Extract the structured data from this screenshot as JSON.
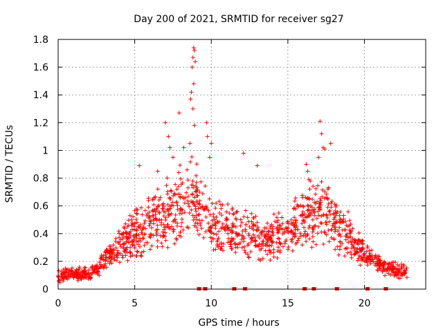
{
  "chart_data": {
    "type": "scatter",
    "title": "Day 200 of 2021, SRMTID for receiver sg27",
    "xlabel": "GPS time / hours",
    "ylabel": "SRMTID / TECUs",
    "xlim": [
      0,
      24
    ],
    "ylim": [
      0,
      1.8
    ],
    "xticks": [
      0,
      5,
      10,
      15,
      20
    ],
    "yticks": [
      0,
      0.2,
      0.4,
      0.6,
      0.8,
      1,
      1.2,
      1.4,
      1.6,
      1.8
    ],
    "xtick_labels": [
      "0",
      "5",
      "10",
      "15",
      "20"
    ],
    "ytick_labels": [
      "0",
      "0.2",
      "0.4",
      "0.6",
      "0.8",
      "1",
      "1.2",
      "1.4",
      "1.6",
      "1.8"
    ],
    "grid": true,
    "marker": "plus",
    "series": [
      {
        "name": "SRMTID",
        "color": "#ff0000",
        "envelope": [
          {
            "x": 0.0,
            "lo": 0.04,
            "hi": 0.15
          },
          {
            "x": 1.0,
            "lo": 0.05,
            "hi": 0.16
          },
          {
            "x": 2.0,
            "lo": 0.06,
            "hi": 0.17
          },
          {
            "x": 2.6,
            "lo": 0.08,
            "hi": 0.22
          },
          {
            "x": 3.0,
            "lo": 0.1,
            "hi": 0.32
          },
          {
            "x": 4.0,
            "lo": 0.15,
            "hi": 0.45
          },
          {
            "x": 5.0,
            "lo": 0.2,
            "hi": 0.6
          },
          {
            "x": 6.0,
            "lo": 0.22,
            "hi": 0.7
          },
          {
            "x": 7.0,
            "lo": 0.25,
            "hi": 0.85
          },
          {
            "x": 8.0,
            "lo": 0.25,
            "hi": 0.95
          },
          {
            "x": 8.9,
            "lo": 0.3,
            "hi": 1.0
          },
          {
            "x": 10.0,
            "lo": 0.25,
            "hi": 0.7
          },
          {
            "x": 11.0,
            "lo": 0.2,
            "hi": 0.65
          },
          {
            "x": 12.0,
            "lo": 0.2,
            "hi": 0.6
          },
          {
            "x": 13.0,
            "lo": 0.2,
            "hi": 0.55
          },
          {
            "x": 14.0,
            "lo": 0.2,
            "hi": 0.55
          },
          {
            "x": 15.0,
            "lo": 0.22,
            "hi": 0.6
          },
          {
            "x": 16.0,
            "lo": 0.25,
            "hi": 0.75
          },
          {
            "x": 17.0,
            "lo": 0.3,
            "hi": 0.9
          },
          {
            "x": 18.0,
            "lo": 0.25,
            "hi": 0.7
          },
          {
            "x": 19.0,
            "lo": 0.2,
            "hi": 0.55
          },
          {
            "x": 20.0,
            "lo": 0.15,
            "hi": 0.35
          },
          {
            "x": 21.0,
            "lo": 0.1,
            "hi": 0.25
          },
          {
            "x": 22.0,
            "lo": 0.07,
            "hi": 0.2
          },
          {
            "x": 22.8,
            "lo": 0.06,
            "hi": 0.18
          }
        ],
        "x_range": [
          0.0,
          22.8
        ],
        "n_points": 1400,
        "outliers": [
          {
            "x": 8.85,
            "y": 1.74
          },
          {
            "x": 8.9,
            "y": 1.72
          },
          {
            "x": 8.8,
            "y": 1.67
          },
          {
            "x": 8.95,
            "y": 1.64
          },
          {
            "x": 8.75,
            "y": 1.6
          },
          {
            "x": 8.85,
            "y": 1.48
          },
          {
            "x": 8.7,
            "y": 1.42
          },
          {
            "x": 8.65,
            "y": 1.37
          },
          {
            "x": 8.8,
            "y": 1.3
          },
          {
            "x": 8.9,
            "y": 1.18
          },
          {
            "x": 8.6,
            "y": 1.05
          },
          {
            "x": 7.9,
            "y": 1.27
          },
          {
            "x": 7.0,
            "y": 1.2
          },
          {
            "x": 7.2,
            "y": 1.1
          },
          {
            "x": 7.3,
            "y": 1.02
          },
          {
            "x": 8.2,
            "y": 1.02
          },
          {
            "x": 9.7,
            "y": 1.2
          },
          {
            "x": 9.75,
            "y": 1.1
          },
          {
            "x": 10.0,
            "y": 1.05
          },
          {
            "x": 9.9,
            "y": 0.95
          },
          {
            "x": 12.1,
            "y": 0.98
          },
          {
            "x": 13.0,
            "y": 0.89
          },
          {
            "x": 16.2,
            "y": 0.9
          },
          {
            "x": 16.3,
            "y": 0.85
          },
          {
            "x": 17.1,
            "y": 1.21
          },
          {
            "x": 17.2,
            "y": 1.12
          },
          {
            "x": 17.3,
            "y": 1.02
          },
          {
            "x": 17.4,
            "y": 1.01
          },
          {
            "x": 17.8,
            "y": 1.05
          },
          {
            "x": 17.0,
            "y": 0.95
          },
          {
            "x": 5.3,
            "y": 0.89
          },
          {
            "x": 6.5,
            "y": 0.85
          },
          {
            "x": 7.5,
            "y": 0.95
          }
        ],
        "zero_markers": [
          9.2,
          9.6,
          11.5,
          12.2,
          16.1,
          16.7,
          18.2,
          20.2,
          21.4
        ]
      }
    ]
  }
}
